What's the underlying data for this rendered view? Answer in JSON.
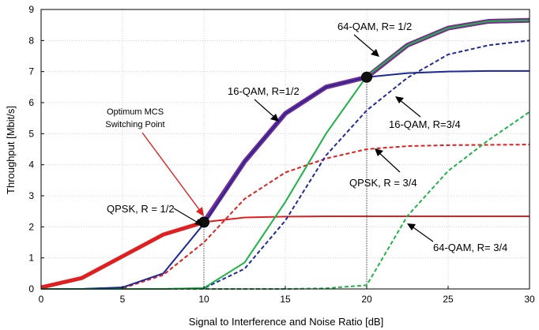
{
  "chart_data": {
    "type": "line",
    "xlabel": "Signal to Interference and Noise Ratio [dB]",
    "ylabel": "Throughput [Mbit/s]",
    "xlim": [
      0,
      30
    ],
    "ylim": [
      0,
      9
    ],
    "xticks": [
      0,
      5,
      10,
      15,
      20,
      25,
      30
    ],
    "yticks": [
      0,
      1,
      2,
      3,
      4,
      5,
      6,
      7,
      8,
      9
    ],
    "grid": true,
    "x": [
      0,
      2.5,
      5,
      7.5,
      10,
      12.5,
      15,
      17.5,
      20,
      22.5,
      25,
      27.5,
      30
    ],
    "series": [
      {
        "name": "QPSK, R = 1/2",
        "color": "#e02020",
        "dash": "solid",
        "values": [
          0.05,
          0.35,
          1.05,
          1.75,
          2.15,
          2.3,
          2.33,
          2.34,
          2.34,
          2.34,
          2.34,
          2.34,
          2.34
        ]
      },
      {
        "name": "QPSK, R = 3/4",
        "color": "#e02020",
        "dash": "dashed",
        "values": [
          0.0,
          0.0,
          0.02,
          0.45,
          1.5,
          2.9,
          3.75,
          4.2,
          4.5,
          4.6,
          4.63,
          4.64,
          4.65
        ]
      },
      {
        "name": "16-QAM, R=1/2",
        "color": "#1f2a99",
        "dash": "solid",
        "values": [
          0.0,
          0.0,
          0.05,
          0.5,
          2.1,
          4.1,
          5.65,
          6.5,
          6.82,
          6.95,
          7.0,
          7.02,
          7.02
        ]
      },
      {
        "name": "16-QAM, R=3/4",
        "color": "#1f2a99",
        "dash": "dashed",
        "values": [
          0.0,
          0.0,
          0.0,
          0.0,
          0.02,
          0.65,
          2.2,
          4.3,
          5.75,
          6.8,
          7.55,
          7.85,
          8.0
        ]
      },
      {
        "name": "64-QAM, R= 1/2",
        "color": "#1fb34a",
        "dash": "solid",
        "values": [
          0.0,
          0.0,
          0.0,
          0.0,
          0.03,
          0.85,
          2.8,
          5.0,
          6.85,
          7.85,
          8.4,
          8.62,
          8.65
        ]
      },
      {
        "name": "64-QAM, R= 3/4",
        "color": "#1fb34a",
        "dash": "dashed",
        "values": [
          0.0,
          0.0,
          0.0,
          0.0,
          0.0,
          0.0,
          0.0,
          0.02,
          0.12,
          2.35,
          3.8,
          4.8,
          5.7
        ]
      }
    ],
    "optimum_envelope": {
      "color": "#7b2a8f",
      "x": [
        10,
        12.5,
        15,
        17.5,
        20,
        22.5,
        25,
        27.5,
        30
      ],
      "values": [
        2.15,
        4.1,
        5.65,
        6.5,
        6.82,
        7.85,
        8.4,
        8.62,
        8.65
      ]
    },
    "switch_points": [
      {
        "x": 10,
        "y": 2.15
      },
      {
        "x": 20,
        "y": 6.82
      }
    ],
    "annotations": [
      {
        "text": "QPSK, R = 1/2"
      },
      {
        "text": "QPSK, R = 3/4"
      },
      {
        "text": "16-QAM, R=1/2"
      },
      {
        "text": "16-QAM, R=3/4"
      },
      {
        "text": "64-QAM, R= 1/2"
      },
      {
        "text": "64-QAM, R= 3/4"
      },
      {
        "text_line1": "Optimum MCS",
        "text_line2": "Switching Point"
      }
    ]
  }
}
